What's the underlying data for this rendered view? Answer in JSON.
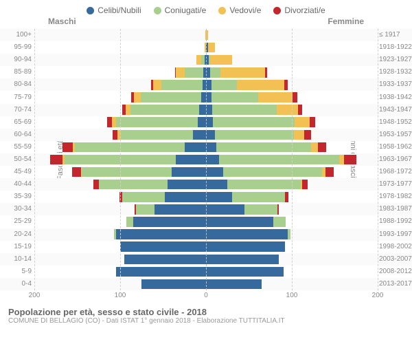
{
  "legend": [
    {
      "label": "Celibi/Nubili",
      "color": "#376a9c"
    },
    {
      "label": "Coniugati/e",
      "color": "#a8cf8e"
    },
    {
      "label": "Vedovi/e",
      "color": "#f3c053"
    },
    {
      "label": "Divorziati/e",
      "color": "#c1272d"
    }
  ],
  "col_headers": {
    "left": "Maschi",
    "right": "Femmine"
  },
  "axis_titles": {
    "left": "Fasce di età",
    "right": "Anni di nascita"
  },
  "x_axis": {
    "max": 200,
    "ticks": [
      -200,
      -100,
      0,
      100,
      200
    ],
    "labels": [
      "200",
      "100",
      "0",
      "100",
      "200"
    ]
  },
  "colors": {
    "celibi": "#376a9c",
    "coniugati": "#a8cf8e",
    "vedovi": "#f3c053",
    "divorziati": "#c1272d"
  },
  "rows": [
    {
      "age": "100+",
      "birth": "≤ 1917",
      "m": {
        "c": 0,
        "co": 0,
        "v": 1,
        "d": 0
      },
      "f": {
        "c": 0,
        "co": 0,
        "v": 2,
        "d": 0
      }
    },
    {
      "age": "95-99",
      "birth": "1918-1922",
      "m": {
        "c": 0,
        "co": 0,
        "v": 2,
        "d": 0
      },
      "f": {
        "c": 2,
        "co": 0,
        "v": 8,
        "d": 0
      }
    },
    {
      "age": "90-94",
      "birth": "1923-1927",
      "m": {
        "c": 2,
        "co": 4,
        "v": 5,
        "d": 0
      },
      "f": {
        "c": 3,
        "co": 2,
        "v": 25,
        "d": 0
      }
    },
    {
      "age": "85-89",
      "birth": "1928-1932",
      "m": {
        "c": 3,
        "co": 22,
        "v": 10,
        "d": 1
      },
      "f": {
        "c": 5,
        "co": 12,
        "v": 52,
        "d": 2
      }
    },
    {
      "age": "80-84",
      "birth": "1933-1937",
      "m": {
        "c": 4,
        "co": 48,
        "v": 10,
        "d": 2
      },
      "f": {
        "c": 6,
        "co": 30,
        "v": 55,
        "d": 4
      }
    },
    {
      "age": "75-79",
      "birth": "1938-1942",
      "m": {
        "c": 6,
        "co": 70,
        "v": 8,
        "d": 3
      },
      "f": {
        "c": 6,
        "co": 55,
        "v": 40,
        "d": 5
      }
    },
    {
      "age": "70-74",
      "birth": "1943-1947",
      "m": {
        "c": 8,
        "co": 80,
        "v": 6,
        "d": 4
      },
      "f": {
        "c": 7,
        "co": 75,
        "v": 25,
        "d": 5
      }
    },
    {
      "age": "65-69",
      "birth": "1948-1952",
      "m": {
        "c": 10,
        "co": 95,
        "v": 5,
        "d": 5
      },
      "f": {
        "c": 8,
        "co": 95,
        "v": 18,
        "d": 6
      }
    },
    {
      "age": "60-64",
      "birth": "1953-1957",
      "m": {
        "c": 15,
        "co": 85,
        "v": 3,
        "d": 6
      },
      "f": {
        "c": 10,
        "co": 92,
        "v": 12,
        "d": 8
      }
    },
    {
      "age": "55-59",
      "birth": "1958-1962",
      "m": {
        "c": 25,
        "co": 128,
        "v": 2,
        "d": 12
      },
      "f": {
        "c": 12,
        "co": 110,
        "v": 8,
        "d": 10
      }
    },
    {
      "age": "50-54",
      "birth": "1963-1967",
      "m": {
        "c": 35,
        "co": 130,
        "v": 2,
        "d": 15
      },
      "f": {
        "c": 15,
        "co": 140,
        "v": 6,
        "d": 14
      }
    },
    {
      "age": "45-49",
      "birth": "1968-1972",
      "m": {
        "c": 40,
        "co": 105,
        "v": 1,
        "d": 10
      },
      "f": {
        "c": 20,
        "co": 115,
        "v": 4,
        "d": 10
      }
    },
    {
      "age": "40-44",
      "birth": "1973-1977",
      "m": {
        "c": 45,
        "co": 80,
        "v": 0,
        "d": 6
      },
      "f": {
        "c": 25,
        "co": 85,
        "v": 2,
        "d": 6
      }
    },
    {
      "age": "35-39",
      "birth": "1978-1982",
      "m": {
        "c": 48,
        "co": 50,
        "v": 0,
        "d": 3
      },
      "f": {
        "c": 30,
        "co": 62,
        "v": 0,
        "d": 4
      }
    },
    {
      "age": "30-34",
      "birth": "1983-1987",
      "m": {
        "c": 60,
        "co": 22,
        "v": 0,
        "d": 1
      },
      "f": {
        "c": 45,
        "co": 38,
        "v": 0,
        "d": 2
      }
    },
    {
      "age": "25-29",
      "birth": "1988-1992",
      "m": {
        "c": 85,
        "co": 8,
        "v": 0,
        "d": 0
      },
      "f": {
        "c": 78,
        "co": 15,
        "v": 0,
        "d": 0
      }
    },
    {
      "age": "20-24",
      "birth": "1993-1997",
      "m": {
        "c": 105,
        "co": 2,
        "v": 0,
        "d": 0
      },
      "f": {
        "c": 95,
        "co": 3,
        "v": 0,
        "d": 0
      }
    },
    {
      "age": "15-19",
      "birth": "1998-2002",
      "m": {
        "c": 100,
        "co": 0,
        "v": 0,
        "d": 0
      },
      "f": {
        "c": 92,
        "co": 0,
        "v": 0,
        "d": 0
      }
    },
    {
      "age": "10-14",
      "birth": "2003-2007",
      "m": {
        "c": 95,
        "co": 0,
        "v": 0,
        "d": 0
      },
      "f": {
        "c": 85,
        "co": 0,
        "v": 0,
        "d": 0
      }
    },
    {
      "age": "5-9",
      "birth": "2008-2012",
      "m": {
        "c": 105,
        "co": 0,
        "v": 0,
        "d": 0
      },
      "f": {
        "c": 90,
        "co": 0,
        "v": 0,
        "d": 0
      }
    },
    {
      "age": "0-4",
      "birth": "2013-2017",
      "m": {
        "c": 75,
        "co": 0,
        "v": 0,
        "d": 0
      },
      "f": {
        "c": 65,
        "co": 0,
        "v": 0,
        "d": 0
      }
    }
  ],
  "footer": {
    "title": "Popolazione per età, sesso e stato civile - 2018",
    "subtitle": "COMUNE DI BELLAGIO (CO) - Dati ISTAT 1° gennaio 2018 - Elaborazione TUTTITALIA.IT"
  }
}
